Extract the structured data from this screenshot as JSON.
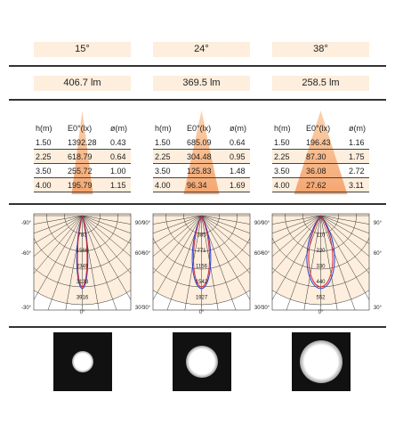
{
  "columns": [
    {
      "beam_angle": "15°",
      "lumen": "406.7 lm",
      "table": {
        "header": [
          "h(m)",
          "E0°(lx)",
          "ø(m)"
        ],
        "rows": [
          [
            "1.50",
            "1392.28",
            "0.43"
          ],
          [
            "2.25",
            "618.79",
            "0.64"
          ],
          [
            "3.50",
            "255.72",
            "1.00"
          ],
          [
            "4.00",
            "195.79",
            "1.15"
          ]
        ]
      },
      "polar": {
        "angles": [
          "-90°",
          "90°",
          "-60°",
          "60°",
          "-30°",
          "0°",
          "30°"
        ],
        "rings": [
          "783",
          "1566",
          "2349",
          "3133",
          "3916"
        ]
      }
    },
    {
      "beam_angle": "24°",
      "lumen": "369.5 lm",
      "table": {
        "header": [
          "h(m)",
          "E0°(lx)",
          "ø(m)"
        ],
        "rows": [
          [
            "1.50",
            "685.09",
            "0.64"
          ],
          [
            "2.25",
            "304.48",
            "0.95"
          ],
          [
            "3.50",
            "125.83",
            "1.48"
          ],
          [
            "4.00",
            "96.34",
            "1.69"
          ]
        ]
      },
      "polar": {
        "angles": [
          "-90°",
          "90°",
          "-60°",
          "60°",
          "-30°",
          "0°",
          "30°"
        ],
        "rings": [
          "385",
          "771",
          "1156",
          "1542",
          "1927"
        ]
      }
    },
    {
      "beam_angle": "38°",
      "lumen": "258.5 lm",
      "table": {
        "header": [
          "h(m)",
          "E0°(lx)",
          "ø(m)"
        ],
        "rows": [
          [
            "1.50",
            "196.43",
            "1.16"
          ],
          [
            "2.25",
            "87.30",
            "1.75"
          ],
          [
            "3.50",
            "36.08",
            "2.72"
          ],
          [
            "4.00",
            "27.62",
            "3.11"
          ]
        ]
      },
      "polar": {
        "angles": [
          "-90°",
          "90°",
          "-60°",
          "60°",
          "-30°",
          "0°",
          "30°"
        ],
        "rings": [
          "110",
          "220",
          "330",
          "440",
          "552"
        ]
      }
    }
  ]
}
